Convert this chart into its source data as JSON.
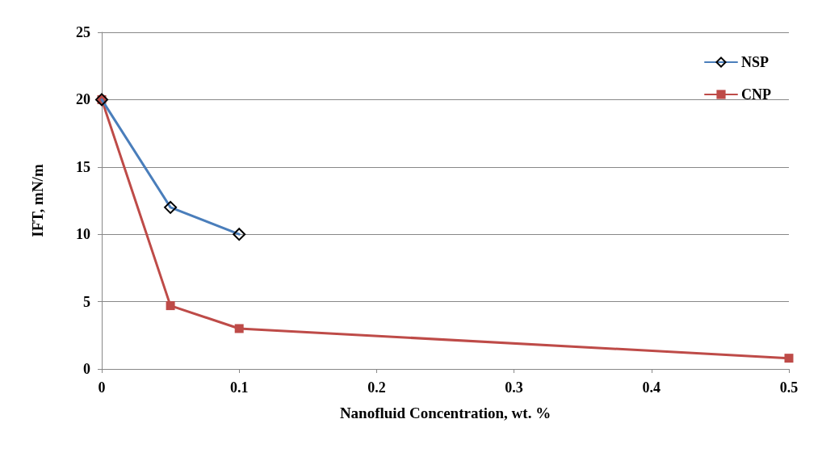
{
  "chart_data": {
    "type": "line",
    "xlabel": "Nanofluid Concentration, wt. %",
    "ylabel": "IFT, mN/m",
    "xlim": [
      0,
      0.5
    ],
    "xticks": [
      0,
      0.1,
      0.2,
      0.3,
      0.4,
      0.5
    ],
    "ylim": [
      0,
      25
    ],
    "yticks": [
      0,
      5,
      10,
      15,
      20,
      25
    ],
    "grid": "y",
    "legend": "top right",
    "line_style": "solid",
    "series": [
      {
        "name": "NSP",
        "color": "#4a7ebb",
        "marker": "diamond",
        "x": [
          0,
          0.05,
          0.1
        ],
        "values": [
          20,
          12,
          10
        ]
      },
      {
        "name": "CNP",
        "color": "#be4b48",
        "marker": "square",
        "x": [
          0,
          0.05,
          0.1,
          0.5
        ],
        "values": [
          20,
          4.7,
          3,
          0.8
        ]
      }
    ]
  }
}
